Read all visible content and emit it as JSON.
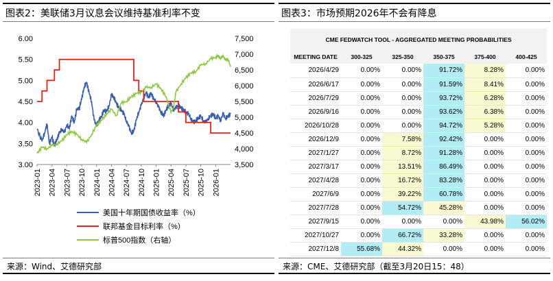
{
  "left_panel": {
    "title": "图表2：美联储3月议息会议维持基准利率不变",
    "source": "来源：Wind、艾德研究部"
  },
  "right_panel": {
    "title": "图表3：市场预期2026年不会有降息",
    "source": "来源：CME、艾德研究部（截至3月20日15：48）",
    "table_title": "CME FEDWATCH TOOL - AGGREGATED MEETING PROBABILITIES",
    "columns": [
      "MEETING DATE",
      "300-325",
      "325-350",
      "350-375",
      "375-400",
      "400-425"
    ],
    "rows": [
      {
        "date": "2026/4/29",
        "v": [
          "0.00%",
          "0.00%",
          "91.72%",
          "8.28%",
          "0.00%"
        ],
        "hl": [
          "",
          "",
          "c",
          "y",
          ""
        ]
      },
      {
        "date": "2026/6/17",
        "v": [
          "0.00%",
          "0.00%",
          "91.59%",
          "8.41%",
          "0.00%"
        ],
        "hl": [
          "",
          "",
          "c",
          "y",
          ""
        ]
      },
      {
        "date": "2026/7/29",
        "v": [
          "0.00%",
          "0.00%",
          "93.72%",
          "6.28%",
          "0.00%"
        ],
        "hl": [
          "",
          "",
          "c",
          "y",
          ""
        ]
      },
      {
        "date": "2026/9/16",
        "v": [
          "0.00%",
          "0.00%",
          "93.62%",
          "6.38%",
          "0.00%"
        ],
        "hl": [
          "",
          "",
          "c",
          "y",
          ""
        ]
      },
      {
        "date": "2026/10/28",
        "v": [
          "0.00%",
          "0.00%",
          "94.72%",
          "5.28%",
          "0.00%"
        ],
        "hl": [
          "",
          "",
          "c",
          "y",
          ""
        ]
      },
      {
        "date": "2026/12/9",
        "v": [
          "0.00%",
          "7.58%",
          "92.42%",
          "0.00%",
          "0.00%"
        ],
        "hl": [
          "",
          "y",
          "c",
          "",
          ""
        ]
      },
      {
        "date": "2027/1/27",
        "v": [
          "0.00%",
          "8.72%",
          "91.28%",
          "0.00%",
          "0.00%"
        ],
        "hl": [
          "",
          "y",
          "c",
          "",
          ""
        ]
      },
      {
        "date": "2027/3/17",
        "v": [
          "0.00%",
          "13.51%",
          "86.49%",
          "0.00%",
          "0.00%"
        ],
        "hl": [
          "",
          "y",
          "c",
          "",
          ""
        ]
      },
      {
        "date": "2027/4/28",
        "v": [
          "0.00%",
          "16.72%",
          "83.28%",
          "0.00%",
          "0.00%"
        ],
        "hl": [
          "",
          "y",
          "c",
          "",
          ""
        ]
      },
      {
        "date": "2027/6/9",
        "v": [
          "0.00%",
          "39.22%",
          "60.78%",
          "0.00%",
          "0.00%"
        ],
        "hl": [
          "",
          "y",
          "c",
          "",
          ""
        ]
      },
      {
        "date": "2027/7/28",
        "v": [
          "0.00%",
          "54.72%",
          "45.28%",
          "0.00%",
          "0.00%"
        ],
        "hl": [
          "",
          "c",
          "y",
          "",
          ""
        ]
      },
      {
        "date": "2027/9/15",
        "v": [
          "0.00%",
          "0.00%",
          "0.00%",
          "43.98%",
          "56.02%"
        ],
        "hl": [
          "",
          "",
          "",
          "y",
          "c"
        ]
      },
      {
        "date": "2027/10/27",
        "v": [
          "0.00%",
          "66.72%",
          "33.28%",
          "0.00%",
          "0.00%"
        ],
        "hl": [
          "",
          "c",
          "y",
          "",
          ""
        ]
      },
      {
        "date": "2027/12/8",
        "v": [
          "55.68%",
          "44.32%",
          "0.00%",
          "0.00%",
          "0.00%"
        ],
        "hl": [
          "c",
          "y",
          "",
          "",
          ""
        ]
      }
    ]
  },
  "chart_data": {
    "type": "line",
    "title": "美联储3月议息会议维持基准利率不变",
    "x_tick_labels": [
      "2023-01",
      "2023-04",
      "2023-07",
      "2023-10",
      "2024-01",
      "2024-04",
      "2024-07",
      "2024-10",
      "2025-01",
      "2025-04",
      "2025-07",
      "2025-10",
      "2026-01"
    ],
    "x_range_months": [
      0,
      39
    ],
    "y_left": {
      "ylim": [
        3.0,
        6.0
      ],
      "ticks": [
        "3.00",
        "3.50",
        "4.00",
        "4.50",
        "5.00",
        "5.50",
        "6.00"
      ]
    },
    "y_right": {
      "ylim": [
        3500,
        7500
      ],
      "ticks": [
        "3,500",
        "4,000",
        "4,500",
        "5,000",
        "5,500",
        "6,000",
        "6,500",
        "7,000",
        "7,500"
      ]
    },
    "colors": {
      "us10y": "#3a5ea8",
      "ffr": "#e2231a",
      "spx": "#8dc63f"
    },
    "series": [
      {
        "name": "美国十年期国债收益率（%）",
        "axis": "left",
        "color": "#3a5ea8",
        "x": [
          0,
          1,
          1.5,
          2,
          2.5,
          3,
          3.5,
          4,
          4.5,
          5,
          5.5,
          6,
          6.5,
          7,
          7.5,
          8,
          8.5,
          9,
          9.5,
          10,
          10.5,
          11,
          11.5,
          12,
          12.5,
          13,
          13.5,
          14,
          14.5,
          15,
          15.5,
          16,
          16.5,
          17,
          17.5,
          18,
          18.5,
          19,
          19.5,
          20,
          20.5,
          21,
          21.5,
          22,
          22.5,
          23,
          23.5,
          24,
          24.5,
          25,
          25.5,
          26,
          26.5,
          27,
          27.5,
          28,
          28.5,
          29,
          29.5,
          30,
          30.5,
          31,
          31.5,
          32,
          32.5,
          33,
          33.5,
          34,
          34.5,
          35,
          35.5,
          36,
          36.5,
          37,
          37.5,
          38,
          38.5,
          39
        ],
        "values": [
          3.85,
          3.55,
          3.75,
          3.95,
          3.5,
          3.65,
          3.45,
          3.6,
          3.75,
          3.85,
          3.75,
          3.95,
          3.85,
          4.15,
          4.0,
          4.3,
          4.35,
          4.55,
          4.85,
          4.95,
          4.7,
          4.5,
          4.05,
          3.95,
          4.05,
          4.15,
          4.3,
          4.25,
          4.4,
          4.65,
          4.6,
          4.45,
          4.35,
          4.3,
          4.2,
          4.05,
          3.9,
          3.75,
          3.8,
          4.05,
          4.25,
          4.4,
          4.6,
          4.7,
          4.6,
          4.7,
          4.55,
          4.5,
          4.35,
          4.25,
          4.15,
          4.3,
          4.4,
          4.45,
          4.3,
          4.35,
          4.4,
          4.35,
          4.3,
          4.25,
          4.2,
          4.1,
          4.0,
          4.05,
          4.1,
          4.15,
          4.05,
          4.0,
          4.1,
          4.15,
          4.2,
          4.1,
          4.15,
          4.05,
          4.2,
          4.1,
          4.15,
          4.2
        ]
      },
      {
        "name": "联邦基金目标利率（%）",
        "axis": "left",
        "color": "#e2231a",
        "step": true,
        "x": [
          0,
          1,
          2,
          3.5,
          4.5,
          6.5,
          19.5,
          20.5,
          21.5,
          23.5,
          27,
          28.5,
          30,
          35,
          36,
          39
        ],
        "values": [
          4.5,
          4.75,
          5.0,
          5.25,
          5.5,
          5.5,
          5.0,
          4.75,
          4.5,
          4.5,
          4.5,
          4.25,
          4.0,
          3.75,
          3.75,
          3.75
        ]
      },
      {
        "name": "标普500指数（右轴）",
        "axis": "right",
        "color": "#8dc63f",
        "x": [
          0,
          1,
          2,
          3,
          4,
          5,
          6,
          7,
          8,
          9,
          10,
          11,
          12,
          13,
          14,
          15,
          16,
          17,
          18,
          19,
          20,
          21,
          22,
          23,
          24,
          25,
          26,
          27,
          27.5,
          28,
          29,
          30,
          31,
          32,
          33,
          34,
          35,
          36,
          36.5,
          37,
          37.5,
          38,
          38.5,
          39
        ],
        "values": [
          3850,
          4050,
          4000,
          4100,
          4150,
          4250,
          4450,
          4550,
          4450,
          4300,
          4200,
          4450,
          4750,
          4900,
          5100,
          5250,
          5050,
          5450,
          5500,
          5650,
          5750,
          5800,
          5950,
          5950,
          6050,
          5900,
          5650,
          5150,
          5300,
          5800,
          6050,
          6250,
          6400,
          6450,
          6650,
          6700,
          6850,
          6900,
          6950,
          6850,
          6950,
          6800,
          6850,
          6600
        ]
      }
    ]
  }
}
